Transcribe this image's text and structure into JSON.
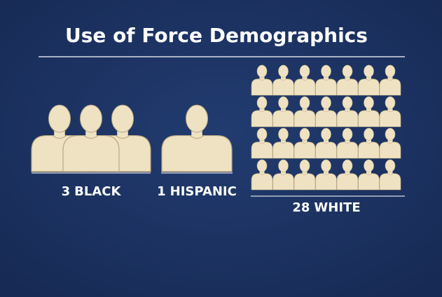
{
  "title": "Use of Force Demographics",
  "groups": [
    {
      "count": 3,
      "label": "BLACK"
    },
    {
      "count": 1,
      "label": "HISPANIC"
    },
    {
      "count": 28,
      "label": "WHITE"
    }
  ]
}
